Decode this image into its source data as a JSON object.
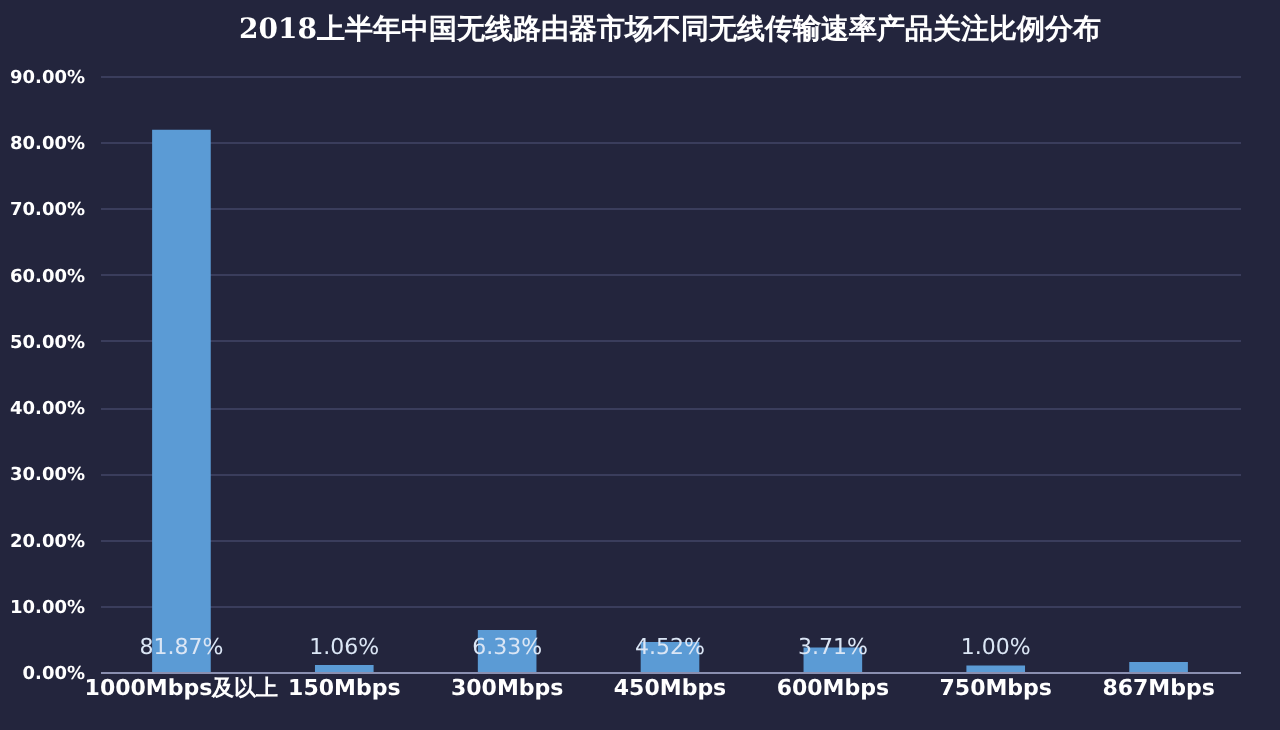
{
  "chart_data": {
    "type": "bar",
    "title": "2018上半年中国无线路由器市场不同无线传输速率产品关注比例分布",
    "categories": [
      "1000Mbps及以上",
      "150Mbps",
      "300Mbps",
      "450Mbps",
      "600Mbps",
      "750Mbps",
      "867Mbps"
    ],
    "values": [
      81.87,
      1.06,
      6.33,
      4.52,
      3.71,
      1.0,
      1.5
    ],
    "value_labels": [
      "81.87%",
      "1.06%",
      "6.33%",
      "4.52%",
      "3.71%",
      "1.00%",
      null
    ],
    "color": "#5b9bd5",
    "ylim": [
      0,
      90
    ],
    "yticks": [
      {
        "value": 0,
        "label": "0.00%"
      },
      {
        "value": 10,
        "label": "10.00%"
      },
      {
        "value": 20,
        "label": "20.00%"
      },
      {
        "value": 30,
        "label": "30.00%"
      },
      {
        "value": 40,
        "label": "40.00%"
      },
      {
        "value": 50,
        "label": "50.00%"
      },
      {
        "value": 60,
        "label": "60.00%"
      },
      {
        "value": 70,
        "label": "70.00%"
      },
      {
        "value": 80,
        "label": "80.00%"
      },
      {
        "value": 90,
        "label": "90.00%"
      }
    ],
    "grid": "y"
  }
}
